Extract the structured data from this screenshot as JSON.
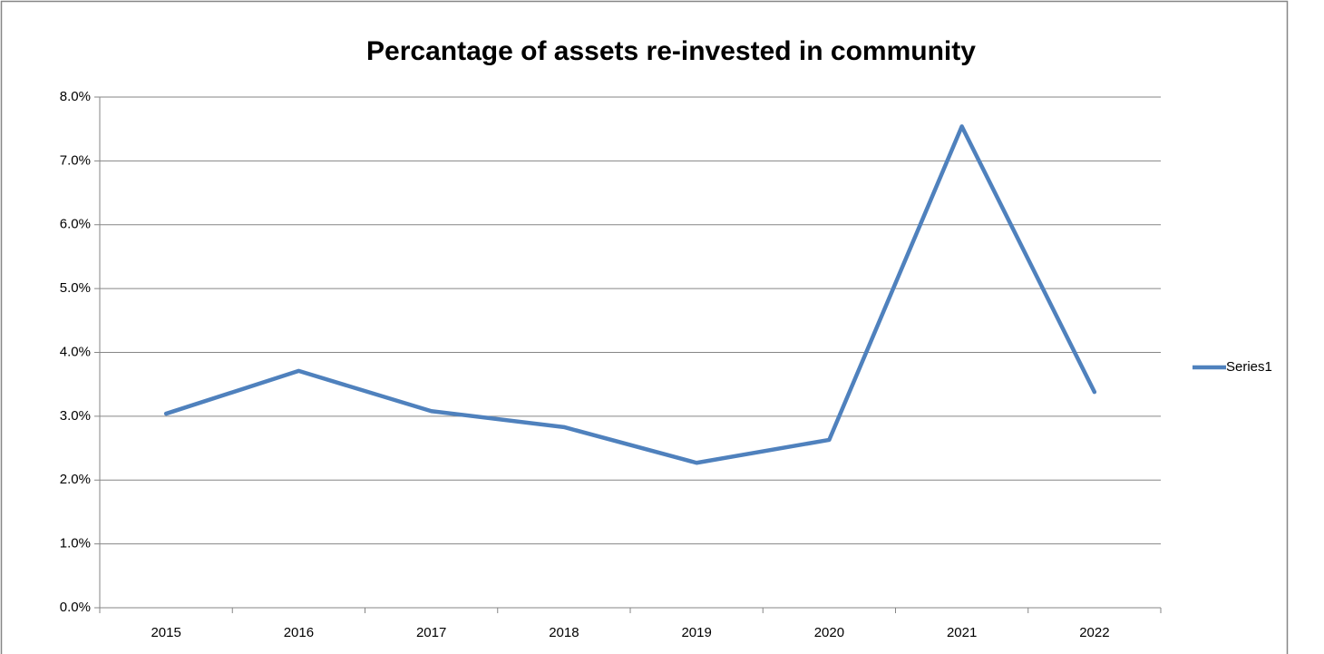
{
  "chart_data": {
    "type": "line",
    "title": "Percantage of assets re-invested in community",
    "categories": [
      "2015",
      "2016",
      "2017",
      "2018",
      "2019",
      "2020",
      "2021",
      "2022"
    ],
    "series": [
      {
        "name": "Series1",
        "color": "#4f81bd",
        "values": [
          3.04,
          3.71,
          3.08,
          2.83,
          2.27,
          2.63,
          7.54,
          3.38
        ]
      }
    ],
    "ylim": [
      0,
      8
    ],
    "yticks": [
      {
        "value": 0,
        "label": "0.0%"
      },
      {
        "value": 1,
        "label": "1.0%"
      },
      {
        "value": 2,
        "label": "2.0%"
      },
      {
        "value": 3,
        "label": "3.0%"
      },
      {
        "value": 4,
        "label": "4.0%"
      },
      {
        "value": 5,
        "label": "5.0%"
      },
      {
        "value": 6,
        "label": "6.0%"
      },
      {
        "value": 7,
        "label": "7.0%"
      },
      {
        "value": 8,
        "label": "8.0%"
      }
    ],
    "grid": true,
    "legend": "right"
  }
}
